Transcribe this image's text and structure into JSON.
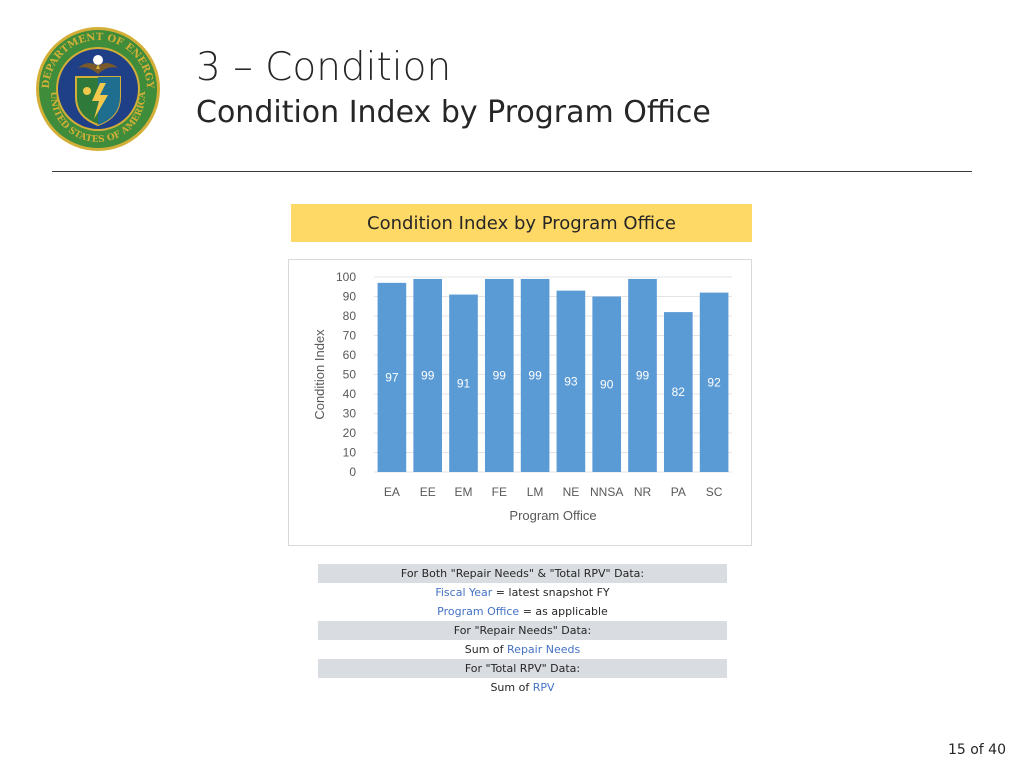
{
  "slide": {
    "title": "3 – Condition",
    "subtitle": "Condition Index by Program Office",
    "page_number": "15 of 40"
  },
  "seal": {
    "top_text": "DEPARTMENT OF ENERGY",
    "bottom_text": "UNITED STATES OF AMERICA",
    "colors": {
      "ring": "#3f8c3a",
      "field": "#1f3f87",
      "trim": "#d4af37"
    }
  },
  "chart_banner": "Condition Index by Program Office",
  "chart_data": {
    "type": "bar",
    "categories": [
      "EA",
      "EE",
      "EM",
      "FE",
      "LM",
      "NE",
      "NNSA",
      "NR",
      "PA",
      "SC"
    ],
    "values": [
      97,
      99,
      91,
      99,
      99,
      93,
      90,
      99,
      82,
      92
    ],
    "data_labels": [
      "97",
      "99",
      "91",
      "99",
      "99",
      "93",
      "90",
      "99",
      "82",
      "92"
    ],
    "xlabel": "Program Office",
    "ylabel": "Condition Index",
    "ylim": [
      0,
      100
    ],
    "yticks": [
      0,
      10,
      20,
      30,
      40,
      50,
      60,
      70,
      80,
      90,
      100
    ],
    "grid": true,
    "bar_color": "#5b9bd5",
    "data_label_color": "#ffffff"
  },
  "notes": {
    "both_header": "For Both \"Repair Needs\" & \"Total RPV\" Data:",
    "fiscal_year_field": "Fiscal Year",
    "fiscal_year_rest": "= latest snapshot FY",
    "program_office_field": "Program Office",
    "program_office_rest": "= as applicable",
    "repair_header": "For \"Repair Needs\" Data:",
    "repair_prefix": "Sum of",
    "repair_field": "Repair Needs",
    "rpv_header": "For \"Total RPV\" Data:",
    "rpv_prefix": "Sum of",
    "rpv_field": "RPV",
    "field_color": "#4472c4",
    "shade_color": "#d9dce1"
  }
}
